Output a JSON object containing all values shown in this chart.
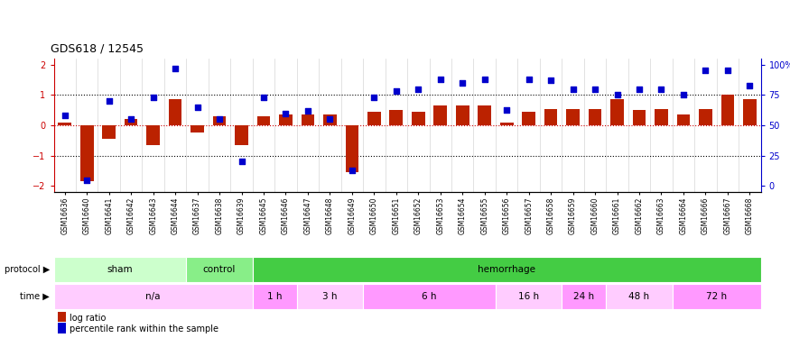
{
  "title": "GDS618 / 12545",
  "samples": [
    "GSM16636",
    "GSM16640",
    "GSM16641",
    "GSM16642",
    "GSM16643",
    "GSM16644",
    "GSM16637",
    "GSM16638",
    "GSM16639",
    "GSM16645",
    "GSM16646",
    "GSM16647",
    "GSM16648",
    "GSM16649",
    "GSM16650",
    "GSM16651",
    "GSM16652",
    "GSM16653",
    "GSM16654",
    "GSM16655",
    "GSM16656",
    "GSM16657",
    "GSM16658",
    "GSM16659",
    "GSM16660",
    "GSM16661",
    "GSM16662",
    "GSM16663",
    "GSM16664",
    "GSM16666",
    "GSM16667",
    "GSM16668"
  ],
  "log_ratio": [
    0.1,
    -1.85,
    -0.45,
    0.2,
    -0.65,
    0.85,
    -0.25,
    0.3,
    -0.65,
    0.3,
    0.35,
    0.35,
    0.35,
    -1.55,
    0.45,
    0.5,
    0.45,
    0.65,
    0.65,
    0.65,
    0.1,
    0.45,
    0.55,
    0.55,
    0.55,
    0.85,
    0.5,
    0.55,
    0.35,
    0.55,
    1.0,
    0.85
  ],
  "percentile": [
    58,
    5,
    70,
    55,
    73,
    97,
    65,
    55,
    20,
    73,
    60,
    62,
    55,
    13,
    73,
    78,
    80,
    88,
    85,
    88,
    63,
    88,
    87,
    80,
    80,
    75,
    80,
    80,
    75,
    95,
    95,
    83
  ],
  "protocol_groups": [
    {
      "label": "sham",
      "start": 0,
      "end": 5,
      "color": "#ccffcc"
    },
    {
      "label": "control",
      "start": 6,
      "end": 8,
      "color": "#88ee88"
    },
    {
      "label": "hemorrhage",
      "start": 9,
      "end": 31,
      "color": "#44cc44"
    }
  ],
  "time_groups": [
    {
      "label": "n/a",
      "start": 0,
      "end": 8,
      "color": "#ffccff"
    },
    {
      "label": "1 h",
      "start": 9,
      "end": 10,
      "color": "#ff99ff"
    },
    {
      "label": "3 h",
      "start": 11,
      "end": 13,
      "color": "#ffccff"
    },
    {
      "label": "6 h",
      "start": 14,
      "end": 19,
      "color": "#ff99ff"
    },
    {
      "label": "16 h",
      "start": 20,
      "end": 22,
      "color": "#ffccff"
    },
    {
      "label": "24 h",
      "start": 23,
      "end": 24,
      "color": "#ff99ff"
    },
    {
      "label": "48 h",
      "start": 25,
      "end": 27,
      "color": "#ffccff"
    },
    {
      "label": "72 h",
      "start": 28,
      "end": 31,
      "color": "#ff99ff"
    }
  ],
  "bar_color": "#bb2200",
  "dot_color": "#0000cc",
  "ylim_left": [
    -2.2,
    2.2
  ],
  "ylim_right": [
    0,
    110
  ],
  "yticks_left": [
    -2,
    -1,
    0,
    1,
    2
  ],
  "yticks_right": [
    0,
    25,
    50,
    75,
    100
  ],
  "background_color": "#ffffff",
  "legend_items": [
    {
      "color": "#bb2200",
      "label": "log ratio"
    },
    {
      "color": "#0000cc",
      "label": "percentile rank within the sample"
    }
  ]
}
